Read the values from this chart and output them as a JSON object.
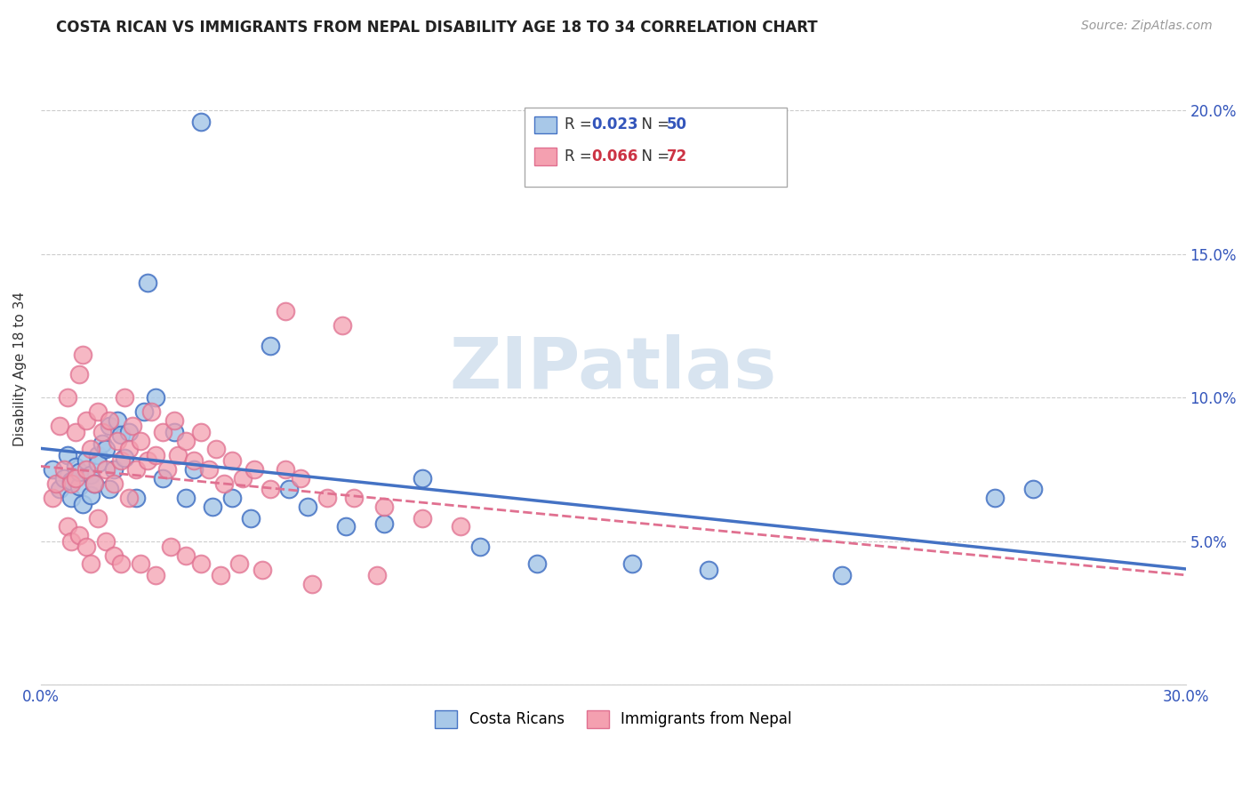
{
  "title": "COSTA RICAN VS IMMIGRANTS FROM NEPAL DISABILITY AGE 18 TO 34 CORRELATION CHART",
  "source": "Source: ZipAtlas.com",
  "ylabel": "Disability Age 18 to 34",
  "xlim": [
    0.0,
    0.3
  ],
  "ylim": [
    0.0,
    0.22
  ],
  "xtick_vals": [
    0.0,
    0.05,
    0.1,
    0.15,
    0.2,
    0.25,
    0.3
  ],
  "xtick_labels": [
    "0.0%",
    "",
    "",
    "",
    "",
    "",
    "30.0%"
  ],
  "ytick_vals": [
    0.0,
    0.05,
    0.1,
    0.15,
    0.2
  ],
  "ytick_labels": [
    "",
    "5.0%",
    "10.0%",
    "15.0%",
    "20.0%"
  ],
  "blue_R": 0.023,
  "blue_N": 50,
  "pink_R": 0.066,
  "pink_N": 72,
  "blue_color": "#a8c8e8",
  "pink_color": "#f4a0b0",
  "blue_edge_color": "#4472c4",
  "pink_edge_color": "#e07090",
  "blue_line_color": "#4472c4",
  "pink_line_color": "#e07090",
  "watermark_color": "#d8e4f0",
  "blue_scatter_x": [
    0.003,
    0.005,
    0.006,
    0.007,
    0.008,
    0.008,
    0.009,
    0.01,
    0.01,
    0.011,
    0.012,
    0.013,
    0.013,
    0.014,
    0.015,
    0.015,
    0.016,
    0.017,
    0.018,
    0.018,
    0.019,
    0.02,
    0.021,
    0.022,
    0.023,
    0.025,
    0.027,
    0.03,
    0.032,
    0.035,
    0.038,
    0.04,
    0.045,
    0.05,
    0.055,
    0.065,
    0.07,
    0.08,
    0.09,
    0.1,
    0.115,
    0.13,
    0.155,
    0.175,
    0.21,
    0.25,
    0.26,
    0.028,
    0.042,
    0.06
  ],
  "blue_scatter_y": [
    0.075,
    0.068,
    0.072,
    0.08,
    0.065,
    0.071,
    0.076,
    0.069,
    0.074,
    0.063,
    0.078,
    0.066,
    0.073,
    0.07,
    0.08,
    0.077,
    0.084,
    0.082,
    0.068,
    0.09,
    0.075,
    0.092,
    0.087,
    0.079,
    0.088,
    0.065,
    0.095,
    0.1,
    0.072,
    0.088,
    0.065,
    0.075,
    0.062,
    0.065,
    0.058,
    0.068,
    0.062,
    0.055,
    0.056,
    0.072,
    0.048,
    0.042,
    0.042,
    0.04,
    0.038,
    0.065,
    0.068,
    0.14,
    0.196,
    0.118
  ],
  "pink_scatter_x": [
    0.003,
    0.004,
    0.005,
    0.006,
    0.007,
    0.008,
    0.009,
    0.009,
    0.01,
    0.011,
    0.012,
    0.012,
    0.013,
    0.014,
    0.015,
    0.016,
    0.017,
    0.018,
    0.019,
    0.02,
    0.021,
    0.022,
    0.023,
    0.024,
    0.025,
    0.026,
    0.028,
    0.029,
    0.03,
    0.032,
    0.033,
    0.035,
    0.036,
    0.038,
    0.04,
    0.042,
    0.044,
    0.046,
    0.048,
    0.05,
    0.053,
    0.056,
    0.06,
    0.064,
    0.068,
    0.075,
    0.082,
    0.09,
    0.1,
    0.11,
    0.007,
    0.008,
    0.01,
    0.012,
    0.013,
    0.015,
    0.017,
    0.019,
    0.021,
    0.023,
    0.026,
    0.03,
    0.034,
    0.038,
    0.042,
    0.047,
    0.052,
    0.058,
    0.064,
    0.071,
    0.079,
    0.088
  ],
  "pink_scatter_y": [
    0.065,
    0.07,
    0.09,
    0.075,
    0.1,
    0.07,
    0.088,
    0.072,
    0.108,
    0.115,
    0.075,
    0.092,
    0.082,
    0.07,
    0.095,
    0.088,
    0.075,
    0.092,
    0.07,
    0.085,
    0.078,
    0.1,
    0.082,
    0.09,
    0.075,
    0.085,
    0.078,
    0.095,
    0.08,
    0.088,
    0.075,
    0.092,
    0.08,
    0.085,
    0.078,
    0.088,
    0.075,
    0.082,
    0.07,
    0.078,
    0.072,
    0.075,
    0.068,
    0.075,
    0.072,
    0.065,
    0.065,
    0.062,
    0.058,
    0.055,
    0.055,
    0.05,
    0.052,
    0.048,
    0.042,
    0.058,
    0.05,
    0.045,
    0.042,
    0.065,
    0.042,
    0.038,
    0.048,
    0.045,
    0.042,
    0.038,
    0.042,
    0.04,
    0.13,
    0.035,
    0.125,
    0.038
  ]
}
